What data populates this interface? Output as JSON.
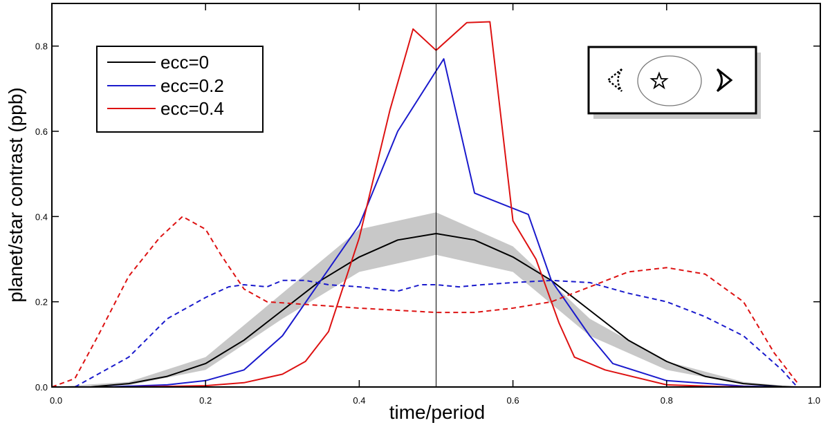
{
  "chart_data": {
    "type": "line",
    "title": "",
    "xlabel": "time/period",
    "ylabel": "planet/star contrast (ppb)",
    "xlim": [
      0.0,
      1.0
    ],
    "ylim": [
      0.0,
      0.9
    ],
    "grid": false,
    "legend_position": "top-left",
    "x_ticks": [
      "0.0",
      "0.2",
      "0.4",
      "0.6",
      "0.8",
      "1.0"
    ],
    "y_ticks": [
      "0.0",
      "0.2",
      "0.4",
      "0.6",
      "0.8"
    ],
    "x_tick_values": [
      0.0,
      0.2,
      0.4,
      0.6,
      0.8,
      1.0
    ],
    "y_tick_values": [
      0.0,
      0.2,
      0.4,
      0.6,
      0.8
    ],
    "vertical_marker_x": 0.5,
    "legend": [
      {
        "label": "ecc=0",
        "color": "#000000"
      },
      {
        "label": "ecc=0.2",
        "color": "#1a1acc"
      },
      {
        "label": "ecc=0.4",
        "color": "#dd1111"
      }
    ],
    "band": {
      "color": "#c8c8c8",
      "x": [
        0.0,
        0.1,
        0.2,
        0.3,
        0.4,
        0.5,
        0.6,
        0.7,
        0.8,
        0.9,
        0.97
      ],
      "upper": [
        0.0,
        0.012,
        0.07,
        0.22,
        0.37,
        0.41,
        0.33,
        0.16,
        0.06,
        0.012,
        0.0
      ],
      "lower": [
        0.0,
        0.004,
        0.04,
        0.16,
        0.27,
        0.31,
        0.27,
        0.12,
        0.04,
        0.006,
        0.0
      ]
    },
    "series": [
      {
        "color": "#000000",
        "dash": false,
        "x": [
          0.05,
          0.1,
          0.15,
          0.2,
          0.25,
          0.3,
          0.35,
          0.4,
          0.45,
          0.5,
          0.55,
          0.6,
          0.65,
          0.7,
          0.75,
          0.8,
          0.85,
          0.9,
          0.95,
          0.97
        ],
        "y": [
          0.0,
          0.008,
          0.025,
          0.055,
          0.11,
          0.18,
          0.25,
          0.305,
          0.345,
          0.36,
          0.345,
          0.305,
          0.25,
          0.18,
          0.11,
          0.06,
          0.025,
          0.008,
          0.001,
          0.0
        ]
      },
      {
        "color": "#1a1acc",
        "dash": false,
        "x": [
          0.07,
          0.15,
          0.2,
          0.25,
          0.3,
          0.35,
          0.4,
          0.45,
          0.51,
          0.55,
          0.62,
          0.65,
          0.7,
          0.73,
          0.8,
          0.9,
          0.95
        ],
        "y": [
          0.0,
          0.005,
          0.015,
          0.04,
          0.12,
          0.25,
          0.38,
          0.6,
          0.77,
          0.455,
          0.405,
          0.25,
          0.12,
          0.055,
          0.015,
          0.002,
          0.0
        ]
      },
      {
        "color": "#dd1111",
        "dash": false,
        "x": [
          0.1,
          0.2,
          0.25,
          0.3,
          0.33,
          0.36,
          0.4,
          0.44,
          0.47,
          0.5,
          0.54,
          0.57,
          0.6,
          0.63,
          0.66,
          0.68,
          0.72,
          0.8,
          0.87,
          0.92
        ],
        "y": [
          0.0,
          0.003,
          0.01,
          0.03,
          0.06,
          0.13,
          0.35,
          0.65,
          0.84,
          0.79,
          0.855,
          0.857,
          0.39,
          0.3,
          0.15,
          0.07,
          0.04,
          0.005,
          0.001,
          0.0
        ]
      },
      {
        "color": "#1a1acc",
        "dash": true,
        "x": [
          0.03,
          0.1,
          0.15,
          0.2,
          0.23,
          0.25,
          0.28,
          0.3,
          0.33,
          0.36,
          0.4,
          0.45,
          0.48,
          0.5,
          0.53,
          0.56,
          0.6,
          0.65,
          0.7,
          0.75,
          0.8,
          0.85,
          0.9,
          0.95,
          0.97
        ],
        "y": [
          0.0,
          0.07,
          0.16,
          0.21,
          0.235,
          0.24,
          0.235,
          0.25,
          0.25,
          0.24,
          0.235,
          0.225,
          0.24,
          0.24,
          0.235,
          0.24,
          0.245,
          0.25,
          0.245,
          0.22,
          0.2,
          0.165,
          0.12,
          0.04,
          0.0
        ]
      },
      {
        "color": "#dd1111",
        "dash": true,
        "x": [
          0.0,
          0.03,
          0.06,
          0.1,
          0.14,
          0.17,
          0.2,
          0.22,
          0.25,
          0.28,
          0.32,
          0.36,
          0.4,
          0.45,
          0.5,
          0.55,
          0.6,
          0.65,
          0.7,
          0.75,
          0.8,
          0.85,
          0.9,
          0.94,
          0.97
        ],
        "y": [
          0.0,
          0.02,
          0.12,
          0.26,
          0.35,
          0.4,
          0.37,
          0.31,
          0.23,
          0.2,
          0.195,
          0.19,
          0.185,
          0.18,
          0.175,
          0.175,
          0.185,
          0.2,
          0.235,
          0.27,
          0.28,
          0.265,
          0.2,
          0.08,
          0.01
        ]
      }
    ]
  }
}
